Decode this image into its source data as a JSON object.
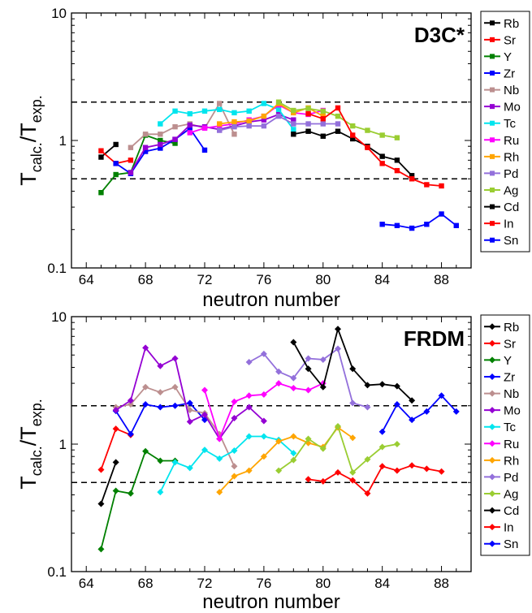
{
  "chart_data": [
    {
      "type": "line",
      "title": "D3C*",
      "xlabel": "neutron number",
      "ylabel_main": "T",
      "ylabel_sub1": "calc.",
      "ylabel_sep": "/T",
      "ylabel_sub2": "exp.",
      "yscale": "log",
      "xlim": [
        63,
        90
      ],
      "ylim": [
        0.1,
        10
      ],
      "xticks": [
        64,
        68,
        72,
        76,
        80,
        84,
        88
      ],
      "yticks": [
        0.1,
        1,
        10
      ],
      "ytick_labels": [
        "0.1",
        "1",
        "10"
      ],
      "reference_lines": [
        0.5,
        2
      ],
      "marker": "square",
      "legend_position": "right",
      "series": [
        {
          "name": "Rb",
          "color": "#000000",
          "x": [
            65,
            66
          ],
          "y": [
            0.74,
            0.93
          ]
        },
        {
          "name": "Sr",
          "color": "#ff0000",
          "x": [
            65,
            66,
            67
          ],
          "y": [
            0.83,
            0.66,
            0.7
          ]
        },
        {
          "name": "Y",
          "color": "#008000",
          "x": [
            65,
            66,
            67,
            68,
            69,
            70
          ],
          "y": [
            0.39,
            0.54,
            0.56,
            1.1,
            1.0,
            0.95
          ]
        },
        {
          "name": "Zr",
          "color": "#0000ff",
          "x": [
            66,
            67,
            68,
            69,
            70,
            71,
            72
          ],
          "y": [
            0.66,
            0.55,
            0.82,
            0.87,
            1.02,
            1.24,
            0.84
          ]
        },
        {
          "name": "Nb",
          "color": "#bc8f8f",
          "x": [
            67,
            68,
            69,
            70,
            71,
            72,
            73,
            74
          ],
          "y": [
            0.88,
            1.12,
            1.12,
            1.28,
            1.35,
            1.25,
            1.95,
            1.12
          ]
        },
        {
          "name": "Mo",
          "color": "#9400d3",
          "x": [
            67,
            68,
            69,
            70,
            71,
            72,
            73,
            74,
            75,
            76,
            77,
            78
          ],
          "y": [
            0.56,
            0.88,
            0.93,
            1.02,
            1.32,
            1.28,
            1.22,
            1.3,
            1.4,
            1.45,
            1.6,
            1.45
          ]
        },
        {
          "name": "Tc",
          "color": "#00e5ee",
          "x": [
            69,
            70,
            71,
            72,
            73,
            74,
            75,
            76,
            77,
            78
          ],
          "y": [
            1.35,
            1.7,
            1.62,
            1.7,
            1.75,
            1.65,
            1.7,
            1.95,
            1.75,
            1.22
          ]
        },
        {
          "name": "Ru",
          "color": "#ff00ff",
          "x": [
            71,
            72,
            73,
            74,
            75,
            76,
            77,
            78,
            79,
            80
          ],
          "y": [
            1.15,
            1.25,
            1.3,
            1.35,
            1.45,
            1.55,
            1.9,
            1.65,
            1.6,
            1.72
          ]
        },
        {
          "name": "Rh",
          "color": "#ffa500",
          "x": [
            73,
            74,
            75,
            76,
            77,
            78,
            79,
            80
          ],
          "y": [
            1.35,
            1.4,
            1.42,
            1.55,
            1.95,
            1.65,
            1.8,
            1.55
          ]
        },
        {
          "name": "Pd",
          "color": "#9370db",
          "x": [
            73,
            74,
            75,
            76,
            77,
            78,
            79,
            80,
            81
          ],
          "y": [
            1.2,
            1.28,
            1.3,
            1.3,
            1.55,
            1.35,
            1.35,
            1.35,
            1.35
          ]
        },
        {
          "name": "Ag",
          "color": "#9acd32",
          "x": [
            77,
            78,
            79,
            80,
            81,
            82,
            83,
            84,
            85
          ],
          "y": [
            2.0,
            1.72,
            1.78,
            1.7,
            1.55,
            1.3,
            1.2,
            1.1,
            1.05
          ]
        },
        {
          "name": "Cd",
          "color": "#000000",
          "x": [
            78,
            79,
            80,
            81,
            82,
            83,
            84,
            85,
            86
          ],
          "y": [
            1.12,
            1.18,
            1.08,
            1.18,
            1.03,
            0.9,
            0.75,
            0.7,
            0.53
          ]
        },
        {
          "name": "In",
          "color": "#ff0000",
          "x": [
            79,
            80,
            81,
            82,
            83,
            84,
            85,
            86,
            87,
            88
          ],
          "y": [
            1.62,
            1.48,
            1.8,
            1.1,
            0.88,
            0.66,
            0.58,
            0.5,
            0.45,
            0.44
          ]
        },
        {
          "name": "Sn",
          "color": "#0000ff",
          "x": [
            84,
            85,
            86,
            87,
            88,
            89
          ],
          "y": [
            0.22,
            0.215,
            0.205,
            0.22,
            0.265,
            0.215
          ]
        }
      ]
    },
    {
      "type": "line",
      "title": "FRDM",
      "xlabel": "neutron number",
      "ylabel_main": "T",
      "ylabel_sub1": "calc.",
      "ylabel_sep": "/T",
      "ylabel_sub2": "exp.",
      "yscale": "log",
      "xlim": [
        63,
        90
      ],
      "ylim": [
        0.1,
        10
      ],
      "xticks": [
        64,
        68,
        72,
        76,
        80,
        84,
        88
      ],
      "yticks": [
        0.1,
        1,
        10
      ],
      "ytick_labels": [
        "0.1",
        "1",
        "10"
      ],
      "reference_lines": [
        0.5,
        2
      ],
      "marker": "diamond",
      "legend_position": "right",
      "series": [
        {
          "name": "Rb",
          "color": "#000000",
          "x": [
            65,
            66
          ],
          "y": [
            0.34,
            0.72
          ]
        },
        {
          "name": "Sr",
          "color": "#ff0000",
          "x": [
            65,
            66,
            67
          ],
          "y": [
            0.63,
            1.32,
            1.18
          ]
        },
        {
          "name": "Y",
          "color": "#008000",
          "x": [
            65,
            66,
            67,
            68,
            69,
            70
          ],
          "y": [
            0.15,
            0.43,
            0.41,
            0.88,
            0.74,
            0.74
          ]
        },
        {
          "name": "Zr",
          "color": "#0000ff",
          "x": [
            66,
            67,
            68,
            69,
            70,
            71,
            72
          ],
          "y": [
            1.82,
            1.2,
            2.05,
            1.95,
            2.0,
            2.1,
            1.55
          ]
        },
        {
          "name": "Nb",
          "color": "#bc8f8f",
          "x": [
            66,
            67,
            68,
            69,
            70,
            71,
            72,
            73,
            74
          ],
          "y": [
            1.95,
            2.05,
            2.8,
            2.55,
            2.8,
            1.85,
            1.75,
            1.2,
            0.67
          ]
        },
        {
          "name": "Mo",
          "color": "#9400d3",
          "x": [
            66,
            67,
            68,
            69,
            70,
            71,
            72,
            73,
            74,
            75,
            76
          ],
          "y": [
            1.85,
            2.2,
            5.7,
            4.1,
            4.7,
            1.5,
            1.7,
            1.1,
            1.6,
            1.95,
            1.52
          ]
        },
        {
          "name": "Tc",
          "color": "#00e5ee",
          "x": [
            69,
            70,
            71,
            72,
            73,
            74,
            75,
            76,
            77,
            78
          ],
          "y": [
            0.42,
            0.72,
            0.65,
            0.9,
            0.77,
            0.89,
            1.15,
            1.15,
            1.08,
            0.85
          ]
        },
        {
          "name": "Ru",
          "color": "#ff00ff",
          "x": [
            72,
            73,
            74,
            75,
            76,
            77,
            78,
            79,
            80
          ],
          "y": [
            2.65,
            1.1,
            2.15,
            2.4,
            2.45,
            3.0,
            2.75,
            2.65,
            3.0
          ]
        },
        {
          "name": "Rh",
          "color": "#ffa500",
          "x": [
            73,
            74,
            75,
            76,
            77,
            78,
            79,
            80,
            81,
            82
          ],
          "y": [
            0.42,
            0.56,
            0.62,
            0.8,
            1.05,
            1.15,
            1.02,
            0.95,
            1.35,
            1.12
          ]
        },
        {
          "name": "Pd",
          "color": "#9370db",
          "x": [
            75,
            76,
            77,
            78,
            79,
            80,
            81,
            82,
            83
          ],
          "y": [
            4.4,
            5.1,
            3.7,
            3.3,
            4.7,
            4.6,
            5.6,
            2.1,
            1.95
          ]
        },
        {
          "name": "Ag",
          "color": "#9acd32",
          "x": [
            77,
            78,
            79,
            80,
            81,
            82,
            83,
            84,
            85
          ],
          "y": [
            0.62,
            0.75,
            1.1,
            0.92,
            1.38,
            0.6,
            0.76,
            0.95,
            1.0
          ]
        },
        {
          "name": "Cd",
          "color": "#000000",
          "x": [
            78,
            79,
            80,
            81,
            82,
            83,
            84,
            85,
            86
          ],
          "y": [
            6.3,
            3.9,
            2.8,
            8.0,
            3.9,
            2.9,
            2.95,
            2.85,
            2.2
          ]
        },
        {
          "name": "In",
          "color": "#ff0000",
          "x": [
            79,
            80,
            81,
            82,
            83,
            84,
            85,
            86,
            87,
            88
          ],
          "y": [
            0.53,
            0.51,
            0.6,
            0.52,
            0.41,
            0.67,
            0.62,
            0.68,
            0.64,
            0.61
          ]
        },
        {
          "name": "Sn",
          "color": "#0000ff",
          "x": [
            84,
            85,
            86,
            87,
            88,
            89
          ],
          "y": [
            1.25,
            2.05,
            1.55,
            1.8,
            2.4,
            1.8
          ]
        }
      ]
    }
  ]
}
